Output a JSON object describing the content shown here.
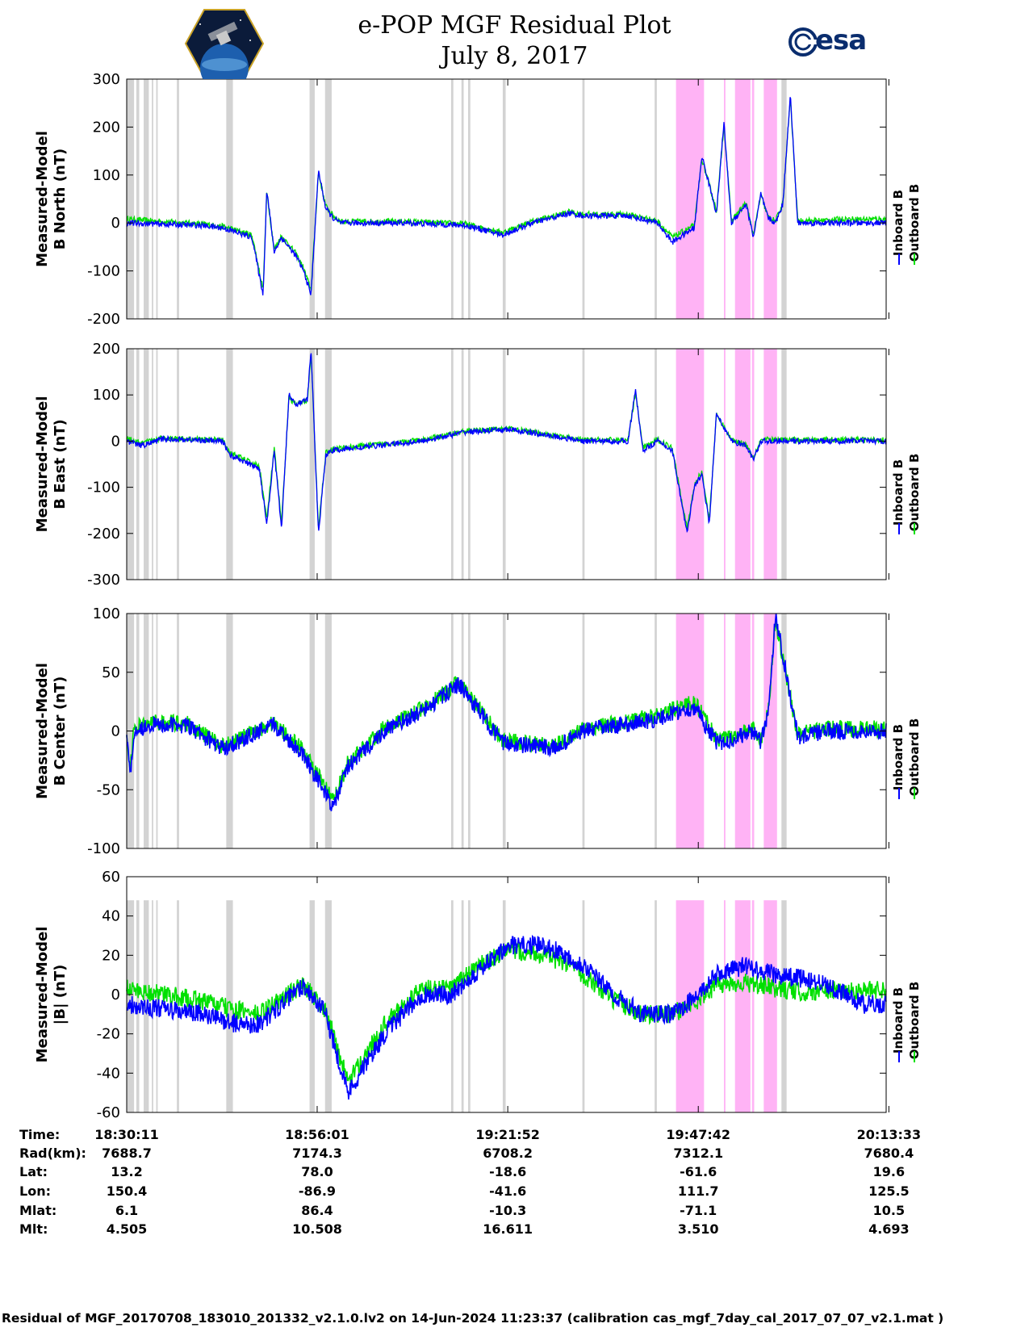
{
  "title": {
    "line1": "e-POP MGF Residual Plot",
    "line2": "July 8, 2017"
  },
  "logos": {
    "left": "e-POP CASSIOPE mission logo",
    "right": "esa"
  },
  "colors": {
    "inboard": "#0000ff",
    "outboard": "#00e000",
    "gap": "#d3d3d3",
    "highlight": "#ffb3f5"
  },
  "footer": "Residual of MGF_20170708_183010_201332_v2.1.0.lv2 on 14-Jun-2024 11:23:37 (calibration cas_mgf_7day_cal_2017_07_07_v2.1.mat )",
  "info_table": {
    "labels": [
      "Time:",
      "Rad(km):",
      "Lat:",
      "Lon:",
      "Mlat:",
      "Mlt:"
    ],
    "columns": [
      [
        "18:30:11",
        "7688.7",
        "13.2",
        "150.4",
        "6.1",
        "4.505"
      ],
      [
        "18:56:01",
        "7174.3",
        "78.0",
        "-86.9",
        "86.4",
        "10.508"
      ],
      [
        "19:21:52",
        "6708.2",
        "-18.6",
        "-41.6",
        "-10.3",
        "16.611"
      ],
      [
        "19:47:42",
        "7312.1",
        "-61.6",
        "111.7",
        "-71.1",
        "3.510"
      ],
      [
        "20:13:33",
        "7680.4",
        "19.6",
        "125.5",
        "10.5",
        "4.693"
      ]
    ]
  },
  "chart_data": [
    {
      "type": "line",
      "ylabel_line1": "Measured-Model",
      "ylabel_line2": "B North (nT)",
      "ylim": [
        -200,
        300
      ],
      "yticks": [
        -200,
        -100,
        0,
        100,
        200,
        300
      ],
      "legend": [
        "Inboard B",
        "Outboard B"
      ],
      "x_minutes": [
        0,
        10,
        13,
        17,
        18.5,
        19,
        20,
        21,
        23,
        24,
        25,
        26,
        27,
        28,
        29,
        30,
        38,
        46,
        51,
        55,
        60,
        62,
        68,
        72,
        74,
        77,
        78,
        80,
        81,
        82,
        84,
        85,
        86,
        87,
        88,
        89,
        90,
        91,
        92,
        94,
        97,
        103
      ],
      "series": [
        {
          "name": "Inboard B",
          "values": [
            0,
            -5,
            -10,
            -30,
            -150,
            70,
            -60,
            -30,
            -70,
            -100,
            -150,
            110,
            30,
            10,
            0,
            0,
            0,
            -5,
            -25,
            0,
            20,
            15,
            15,
            0,
            -40,
            -10,
            140,
            20,
            210,
            0,
            40,
            -30,
            60,
            10,
            0,
            40,
            270,
            0,
            0,
            0,
            0,
            0
          ]
        },
        {
          "name": "Outboard B",
          "values": [
            8,
            -2,
            -7,
            -25,
            -140,
            65,
            -55,
            -27,
            -65,
            -95,
            -140,
            105,
            35,
            15,
            3,
            3,
            3,
            -2,
            -20,
            3,
            23,
            18,
            18,
            4,
            -30,
            -5,
            135,
            25,
            205,
            4,
            42,
            -25,
            58,
            12,
            4,
            42,
            262,
            5,
            5,
            5,
            8,
            8
          ]
        }
      ]
    },
    {
      "type": "line",
      "ylabel_line1": "Measured-Model",
      "ylabel_line2": "B East (nT)",
      "ylim": [
        -300,
        200
      ],
      "yticks": [
        -300,
        -200,
        -100,
        0,
        100,
        200
      ],
      "legend": [
        "Inboard B",
        "Outboard B"
      ],
      "x_minutes": [
        0,
        2,
        5,
        13,
        14,
        18,
        19,
        20,
        21,
        22,
        23,
        24.5,
        25,
        26,
        27,
        28,
        31,
        40,
        46,
        52,
        62,
        68,
        69,
        70,
        72,
        74,
        76,
        77,
        78,
        79,
        80,
        82,
        84,
        85,
        86,
        87,
        90,
        103
      ],
      "series": [
        {
          "name": "Inboard B",
          "values": [
            0,
            -10,
            5,
            0,
            -30,
            -60,
            -180,
            -20,
            -190,
            100,
            80,
            90,
            200,
            -200,
            -30,
            -20,
            -15,
            0,
            20,
            25,
            0,
            0,
            110,
            -20,
            0,
            -20,
            -200,
            -100,
            -70,
            -180,
            60,
            0,
            -10,
            -40,
            0,
            0,
            0,
            0
          ]
        },
        {
          "name": "Outboard B",
          "values": [
            5,
            -5,
            7,
            2,
            -25,
            -55,
            -170,
            -15,
            -180,
            95,
            78,
            88,
            190,
            -190,
            -25,
            -17,
            -12,
            2,
            22,
            27,
            2,
            3,
            105,
            -15,
            3,
            -15,
            -190,
            -95,
            -65,
            -170,
            58,
            3,
            -7,
            -35,
            3,
            3,
            3,
            3
          ]
        }
      ]
    },
    {
      "type": "line",
      "ylabel_line1": "Measured-Model",
      "ylabel_line2": "B Center (nT)",
      "ylim": [
        -100,
        100
      ],
      "yticks": [
        -100,
        -50,
        0,
        50,
        100
      ],
      "legend": [
        "Inboard B",
        "Outboard B"
      ],
      "x_minutes": [
        0,
        0.5,
        1,
        3,
        8,
        13,
        20,
        24,
        28,
        30,
        35,
        41,
        45,
        51,
        58,
        62,
        67,
        72,
        74,
        77,
        80,
        81,
        85,
        86,
        87,
        88,
        91,
        95,
        103
      ],
      "series": [
        {
          "name": "Inboard B",
          "values": [
            0,
            -40,
            0,
            5,
            5,
            -15,
            5,
            -20,
            -65,
            -30,
            0,
            20,
            40,
            -10,
            -15,
            0,
            5,
            10,
            15,
            20,
            -10,
            -10,
            0,
            -10,
            15,
            100,
            -5,
            0,
            0
          ]
        },
        {
          "name": "Outboard B",
          "values": [
            -10,
            -30,
            2,
            7,
            7,
            -13,
            7,
            -17,
            -60,
            -27,
            3,
            22,
            42,
            -8,
            -13,
            2,
            7,
            13,
            19,
            25,
            -7,
            -7,
            2,
            -8,
            17,
            95,
            -3,
            2,
            2
          ]
        }
      ]
    },
    {
      "type": "line",
      "ylabel_line1": "Measured-Model",
      "ylabel_line2": "|B| (nT)",
      "ylim": [
        -60,
        60
      ],
      "yticks": [
        -60,
        -40,
        -20,
        0,
        20,
        40,
        60
      ],
      "legend": [
        "Inboard B",
        "Outboard B"
      ],
      "x_minutes": [
        0,
        10,
        15,
        18,
        21,
        24,
        27,
        30,
        35,
        40,
        44,
        47,
        52,
        57,
        62,
        66,
        70,
        74,
        77,
        80,
        84,
        88,
        92,
        95,
        100,
        103
      ],
      "series": [
        {
          "name": "Inboard B",
          "values": [
            -5,
            -10,
            -15,
            -15,
            -5,
            5,
            -10,
            -50,
            -20,
            0,
            0,
            10,
            25,
            25,
            15,
            0,
            -10,
            -10,
            -2,
            10,
            15,
            10,
            8,
            5,
            -5,
            -5
          ]
        },
        {
          "name": "Outboard B",
          "values": [
            3,
            -3,
            -8,
            -10,
            -2,
            5,
            -8,
            -45,
            -15,
            3,
            3,
            13,
            23,
            20,
            10,
            -3,
            -10,
            -10,
            -4,
            5,
            6,
            3,
            1,
            2,
            2,
            3
          ]
        }
      ]
    }
  ],
  "shading": {
    "x_minutes_range": [
      0,
      103
    ],
    "gray_bands": [
      [
        0,
        1
      ],
      [
        1.3,
        1.7
      ],
      [
        2.3,
        3.0
      ],
      [
        3.4,
        3.6
      ],
      [
        4.0,
        4.2
      ],
      [
        6.8,
        7.1
      ],
      [
        13.5,
        14.4
      ],
      [
        24.8,
        25.5
      ],
      [
        26.9,
        27.8
      ],
      [
        44,
        44.3
      ],
      [
        45.4,
        45.7
      ],
      [
        46.3,
        46.6
      ],
      [
        51,
        51.4
      ],
      [
        61.8,
        62.1
      ],
      [
        71.6,
        71.9
      ],
      [
        88.8,
        89.5
      ]
    ],
    "pink_bands": [
      [
        74.5,
        78.3
      ],
      [
        81.0,
        81.2
      ],
      [
        82.5,
        84.6
      ],
      [
        84.8,
        85.1
      ],
      [
        86.4,
        88.2
      ]
    ]
  }
}
